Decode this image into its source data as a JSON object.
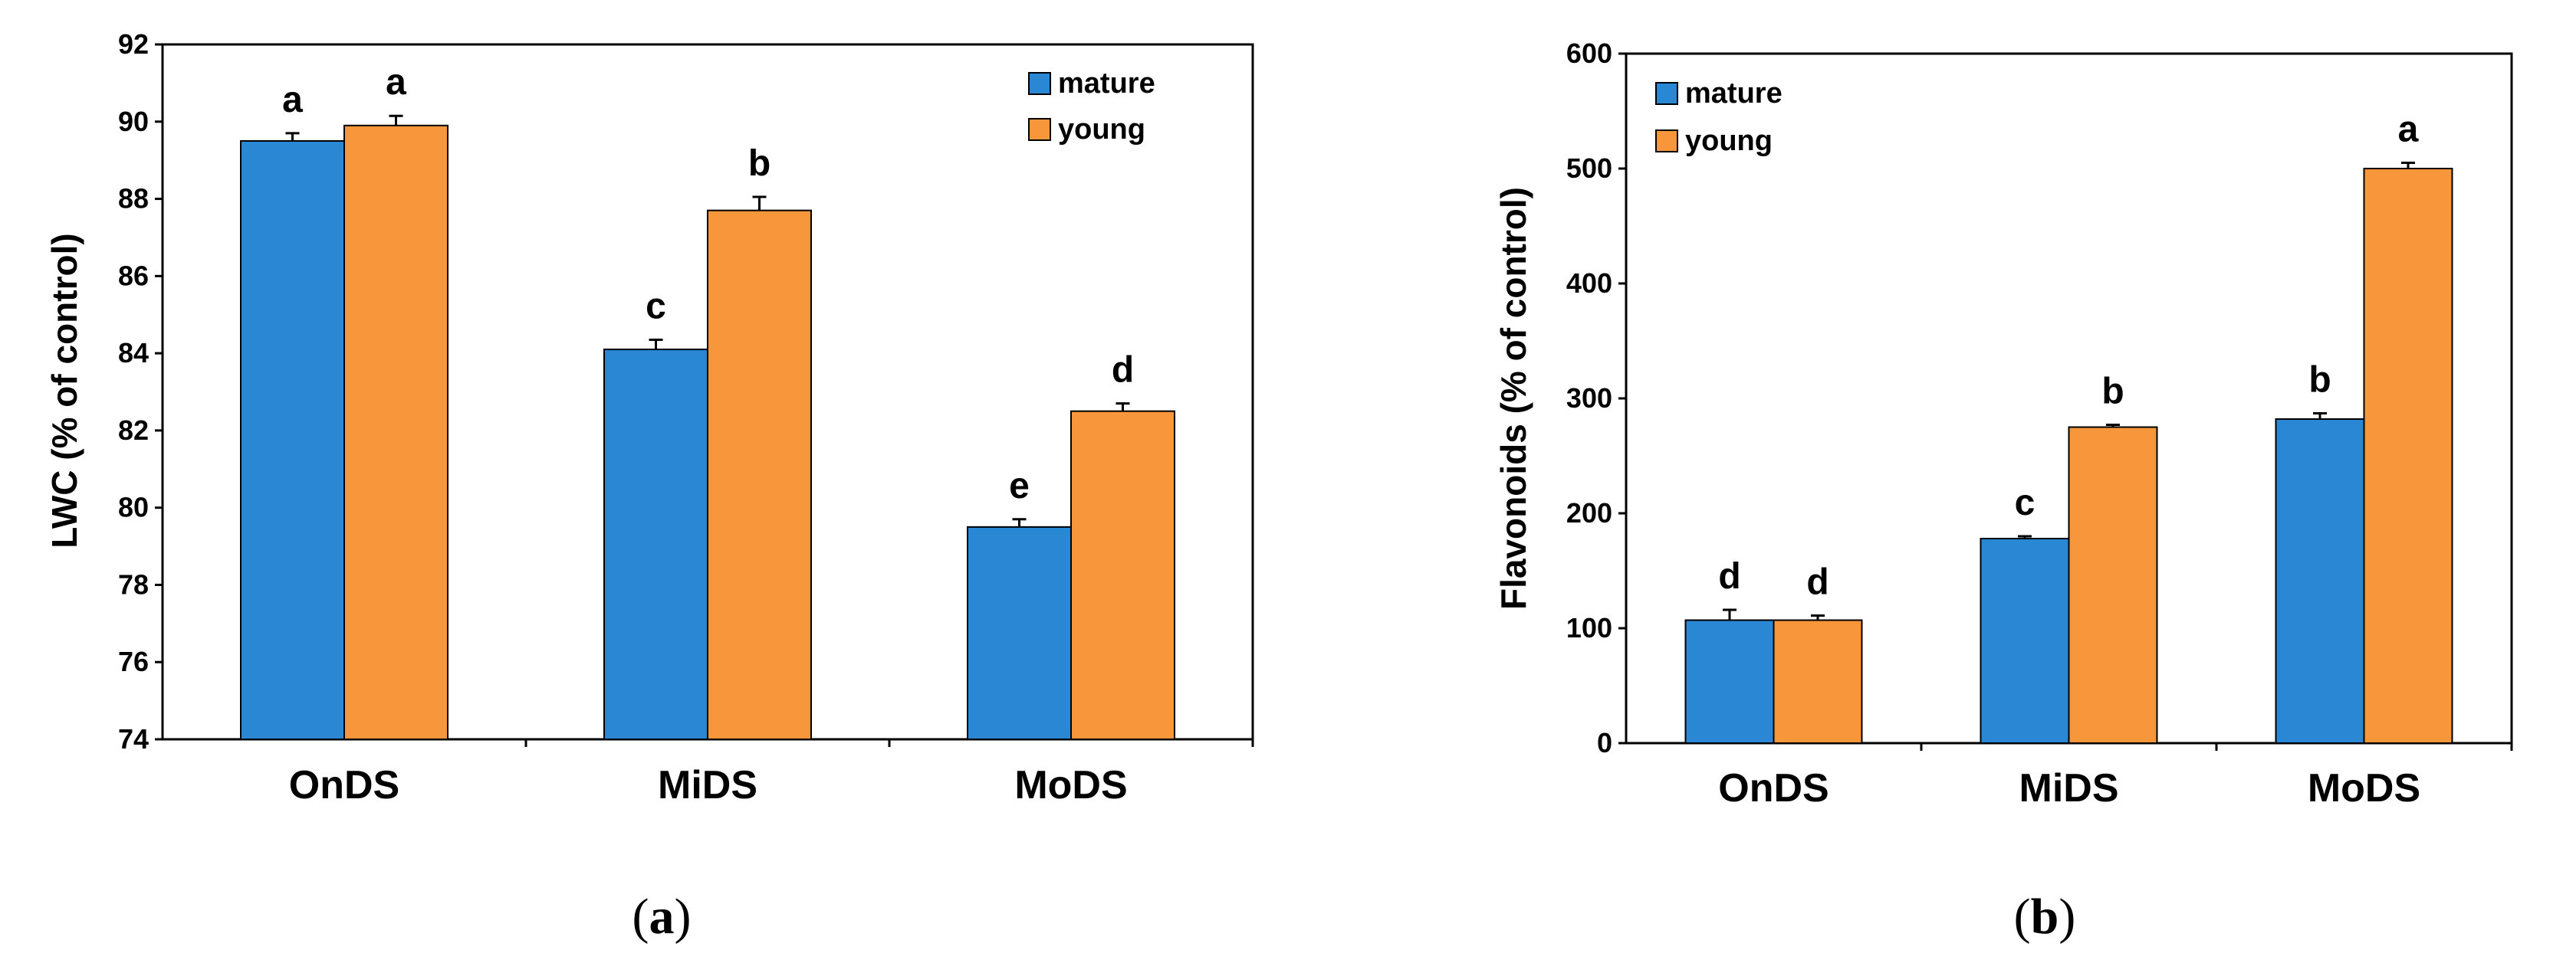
{
  "colors": {
    "mature": "#2a87d4",
    "young": "#f7963a",
    "axis": "#000000"
  },
  "chart_data": [
    {
      "id": "a",
      "type": "bar",
      "panel_label": "a",
      "ylabel": "LWC (% of control)",
      "ylim": [
        74,
        92
      ],
      "yticks": [
        74,
        76,
        78,
        80,
        82,
        84,
        86,
        88,
        90,
        92
      ],
      "categories": [
        "OnDS",
        "MiDS",
        "MoDS"
      ],
      "series": [
        {
          "name": "mature",
          "values": [
            89.5,
            84.1,
            79.5
          ],
          "errors": [
            0.2,
            0.25,
            0.2
          ],
          "letters": [
            "a",
            "c",
            "e"
          ]
        },
        {
          "name": "young",
          "values": [
            89.9,
            87.7,
            82.5
          ],
          "errors": [
            0.25,
            0.35,
            0.2
          ],
          "letters": [
            "a",
            "b",
            "d"
          ]
        }
      ],
      "legend": "top-right"
    },
    {
      "id": "b",
      "type": "bar",
      "panel_label": "b",
      "ylabel": "Flavonoids (% of control)",
      "ylim": [
        0,
        600
      ],
      "yticks": [
        0,
        100,
        200,
        300,
        400,
        500,
        600
      ],
      "categories": [
        "OnDS",
        "MiDS",
        "MoDS"
      ],
      "series": [
        {
          "name": "mature",
          "values": [
            107,
            178,
            282
          ],
          "errors": [
            9,
            2,
            5
          ],
          "letters": [
            "d",
            "c",
            "b"
          ]
        },
        {
          "name": "young",
          "values": [
            107,
            275,
            500
          ],
          "errors": [
            4,
            2,
            5
          ],
          "letters": [
            "d",
            "b",
            "a"
          ]
        }
      ],
      "legend": "top-left"
    }
  ]
}
